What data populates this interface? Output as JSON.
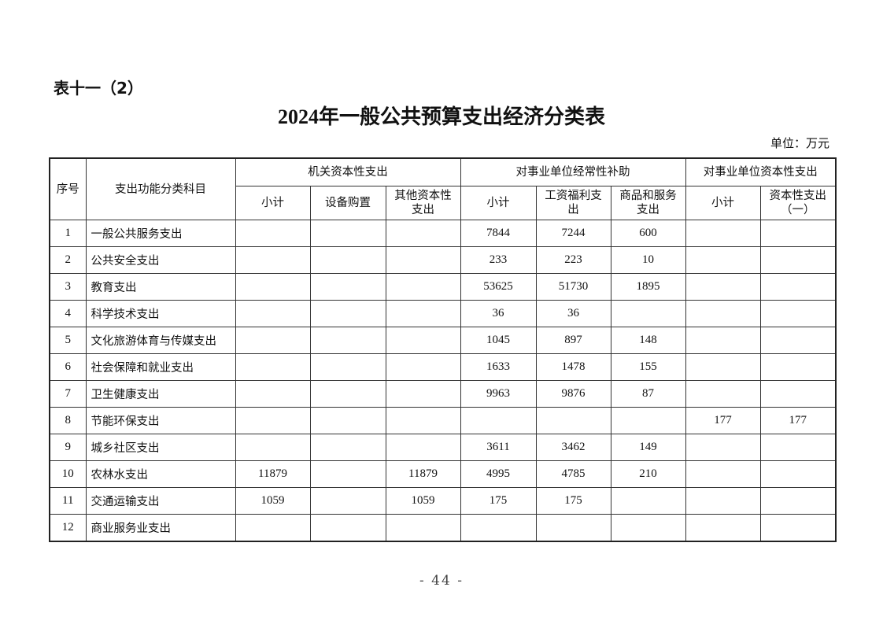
{
  "label": "表十一（2）",
  "title": "2024年一般公共预算支出经济分类表",
  "unit": "单位：万元",
  "headers": {
    "seq": "序号",
    "category": "支出功能分类科目",
    "group1": "机关资本性支出",
    "group2": "对事业单位经常性补助",
    "group3": "对事业单位资本性支出",
    "g1_subtotal": "小计",
    "g1_equipment": "设备购置",
    "g1_other": "其他资本性支出",
    "g2_subtotal": "小计",
    "g2_wages": "工资福利支出",
    "g2_goods": "商品和服务支出",
    "g3_subtotal": "小计",
    "g3_capital": "资本性支出（一）"
  },
  "rows": [
    {
      "seq": "1",
      "name": "一般公共服务支出",
      "c": [
        "",
        "",
        "",
        "7844",
        "7244",
        "600",
        "",
        ""
      ]
    },
    {
      "seq": "2",
      "name": "公共安全支出",
      "c": [
        "",
        "",
        "",
        "233",
        "223",
        "10",
        "",
        ""
      ]
    },
    {
      "seq": "3",
      "name": "教育支出",
      "c": [
        "",
        "",
        "",
        "53625",
        "51730",
        "1895",
        "",
        ""
      ]
    },
    {
      "seq": "4",
      "name": "科学技术支出",
      "c": [
        "",
        "",
        "",
        "36",
        "36",
        "",
        "",
        ""
      ]
    },
    {
      "seq": "5",
      "name": "文化旅游体育与传媒支出",
      "c": [
        "",
        "",
        "",
        "1045",
        "897",
        "148",
        "",
        ""
      ]
    },
    {
      "seq": "6",
      "name": "社会保障和就业支出",
      "c": [
        "",
        "",
        "",
        "1633",
        "1478",
        "155",
        "",
        ""
      ]
    },
    {
      "seq": "7",
      "name": "卫生健康支出",
      "c": [
        "",
        "",
        "",
        "9963",
        "9876",
        "87",
        "",
        ""
      ]
    },
    {
      "seq": "8",
      "name": "节能环保支出",
      "c": [
        "",
        "",
        "",
        "",
        "",
        "",
        "177",
        "177"
      ]
    },
    {
      "seq": "9",
      "name": "城乡社区支出",
      "c": [
        "",
        "",
        "",
        "3611",
        "3462",
        "149",
        "",
        ""
      ]
    },
    {
      "seq": "10",
      "name": "农林水支出",
      "c": [
        "11879",
        "",
        "11879",
        "4995",
        "4785",
        "210",
        "",
        ""
      ]
    },
    {
      "seq": "11",
      "name": "交通运输支出",
      "c": [
        "1059",
        "",
        "1059",
        "175",
        "175",
        "",
        "",
        ""
      ]
    },
    {
      "seq": "12",
      "name": "商业服务业支出",
      "c": [
        "",
        "",
        "",
        "",
        "",
        "",
        "",
        ""
      ]
    }
  ],
  "page_number": "- 44 -"
}
